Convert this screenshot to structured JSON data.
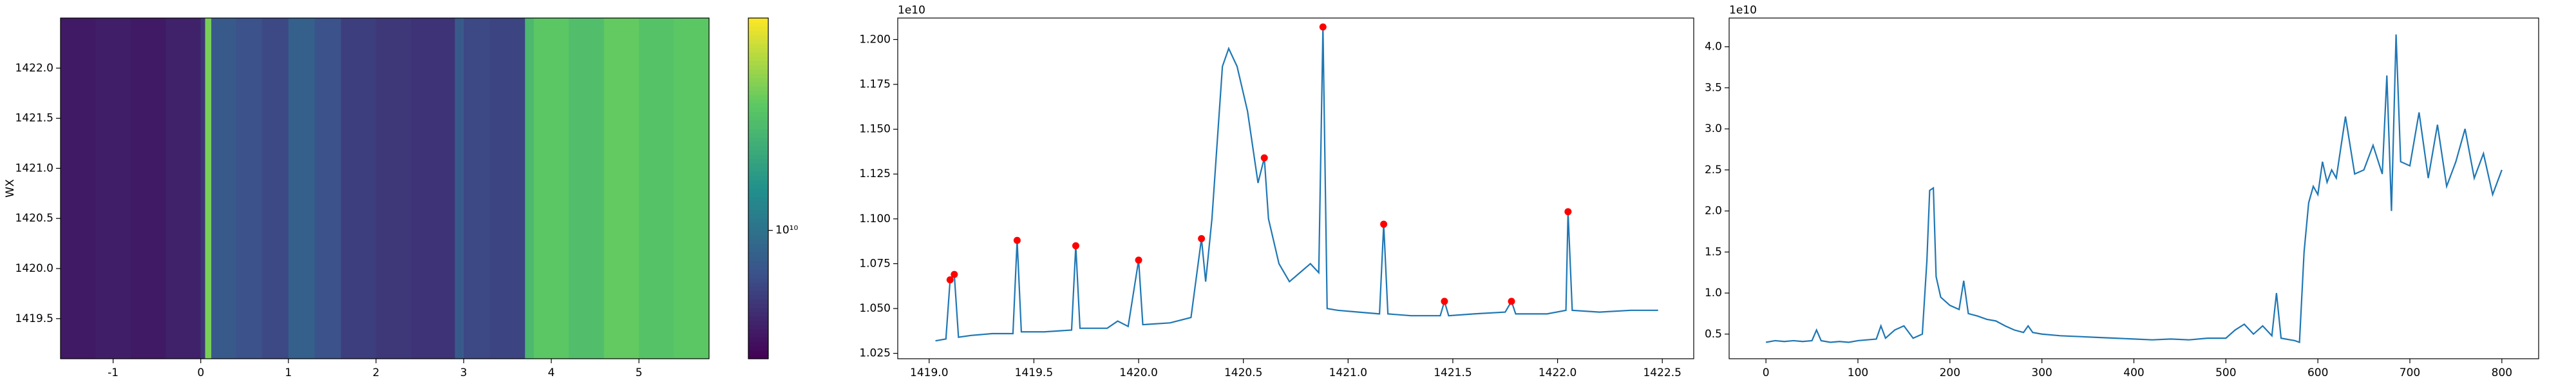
{
  "chart_data": [
    {
      "type": "heatmap",
      "ylabel": "WX",
      "x_edges": [
        -1.6,
        -1.2,
        -0.8,
        -0.4,
        0,
        0.05,
        0.12,
        0.4,
        0.7,
        1.0,
        1.3,
        1.6,
        2.0,
        2.4,
        2.9,
        3.0,
        3.3,
        3.7,
        3.8,
        4.2,
        4.6,
        5.0,
        5.4,
        5.8
      ],
      "values": [
        5000000000.0,
        5200000000.0,
        5000000000.0,
        5300000000.0,
        6000000000.0,
        26000000000.0,
        8000000000.0,
        7500000000.0,
        7000000000.0,
        8500000000.0,
        7500000000.0,
        6500000000.0,
        6200000000.0,
        6000000000.0,
        8000000000.0,
        7000000000.0,
        6800000000.0,
        20000000000.0,
        23000000000.0,
        21000000000.0,
        24000000000.0,
        22000000000.0,
        23000000000.0
      ],
      "xlim": [
        -1.6,
        5.8
      ],
      "ylim": [
        1419.1,
        1422.5
      ],
      "xticks": [
        -1,
        0,
        1,
        2,
        3,
        4,
        5
      ],
      "yticks": [
        1419.5,
        {
          "value": 1420,
          "label": "1420.0"
        },
        1420.5,
        {
          "value": 1421,
          "label": "1421.0"
        },
        1421.5,
        {
          "value": 1422,
          "label": "1422.0"
        }
      ],
      "colormap": "viridis",
      "color_scale": "log",
      "clim": [
        4200000000.0,
        42000000000.0
      ],
      "cticks": [
        {
          "value": 10000000000.0,
          "label": "10¹⁰"
        }
      ]
    },
    {
      "type": "line",
      "y_offset_label": "1e10",
      "color": "#1f77b4",
      "x": [
        1419.03,
        1419.08,
        1419.1,
        1419.12,
        1419.14,
        1419.2,
        1419.3,
        1419.4,
        1419.42,
        1419.44,
        1419.55,
        1419.68,
        1419.7,
        1419.72,
        1419.85,
        1419.9,
        1419.95,
        1420.0,
        1420.02,
        1420.15,
        1420.25,
        1420.3,
        1420.32,
        1420.35,
        1420.4,
        1420.43,
        1420.47,
        1420.52,
        1420.57,
        1420.6,
        1420.62,
        1420.67,
        1420.72,
        1420.77,
        1420.82,
        1420.86,
        1420.88,
        1420.9,
        1420.95,
        1421.05,
        1421.15,
        1421.17,
        1421.19,
        1421.3,
        1421.44,
        1421.46,
        1421.48,
        1421.6,
        1421.75,
        1421.78,
        1421.8,
        1421.95,
        1422.04,
        1422.05,
        1422.07,
        1422.2,
        1422.35,
        1422.48
      ],
      "values": [
        1.032,
        1.033,
        1.066,
        1.069,
        1.034,
        1.035,
        1.036,
        1.036,
        1.088,
        1.037,
        1.037,
        1.038,
        1.085,
        1.039,
        1.039,
        1.043,
        1.04,
        1.077,
        1.041,
        1.042,
        1.045,
        1.089,
        1.065,
        1.1,
        1.185,
        1.195,
        1.185,
        1.16,
        1.12,
        1.134,
        1.1,
        1.075,
        1.065,
        1.07,
        1.075,
        1.07,
        1.207,
        1.05,
        1.049,
        1.048,
        1.047,
        1.097,
        1.047,
        1.046,
        1.046,
        1.054,
        1.046,
        1.047,
        1.048,
        1.054,
        1.047,
        1.047,
        1.049,
        1.104,
        1.049,
        1.048,
        1.049,
        1.049
      ],
      "peaks": {
        "color": "#ff0000",
        "x": [
          1419.1,
          1419.12,
          1419.42,
          1419.7,
          1420.0,
          1420.3,
          1420.6,
          1420.88,
          1421.17,
          1421.46,
          1421.78,
          1422.05
        ],
        "values": [
          1.066,
          1.069,
          1.088,
          1.085,
          1.077,
          1.089,
          1.134,
          1.207,
          1.097,
          1.054,
          1.054,
          1.104
        ]
      },
      "xlim": [
        1418.85,
        1422.65
      ],
      "ylim": [
        1.022,
        1.212
      ],
      "xticks": [
        {
          "value": 1419,
          "label": "1419.0"
        },
        1419.5,
        {
          "value": 1420,
          "label": "1420.0"
        },
        1420.5,
        {
          "value": 1421,
          "label": "1421.0"
        },
        1421.5,
        {
          "value": 1422,
          "label": "1422.0"
        },
        1422.5
      ],
      "yticks": [
        1.025,
        {
          "value": 1.05,
          "label": "1.050"
        },
        1.075,
        {
          "value": 1.1,
          "label": "1.100"
        },
        1.125,
        {
          "value": 1.15,
          "label": "1.150"
        },
        1.175,
        {
          "value": 1.2,
          "label": "1.200"
        }
      ]
    },
    {
      "type": "line",
      "y_offset_label": "1e10",
      "color": "#1f77b4",
      "x": [
        0,
        10,
        20,
        30,
        40,
        50,
        55,
        60,
        70,
        80,
        90,
        100,
        110,
        120,
        125,
        130,
        140,
        150,
        160,
        170,
        175,
        178,
        182,
        185,
        190,
        200,
        210,
        215,
        220,
        230,
        240,
        250,
        260,
        270,
        280,
        285,
        290,
        300,
        320,
        340,
        360,
        380,
        400,
        420,
        440,
        460,
        480,
        500,
        510,
        520,
        530,
        540,
        550,
        555,
        560,
        570,
        575,
        580,
        585,
        590,
        595,
        600,
        605,
        610,
        615,
        620,
        630,
        640,
        650,
        660,
        670,
        675,
        680,
        685,
        690,
        700,
        710,
        720,
        730,
        740,
        750,
        760,
        770,
        780,
        790,
        800
      ],
      "values": [
        0.4,
        0.42,
        0.41,
        0.42,
        0.41,
        0.42,
        0.55,
        0.42,
        0.4,
        0.41,
        0.4,
        0.42,
        0.43,
        0.44,
        0.6,
        0.45,
        0.55,
        0.6,
        0.45,
        0.5,
        1.4,
        2.25,
        2.28,
        1.2,
        0.95,
        0.85,
        0.8,
        1.15,
        0.75,
        0.72,
        0.68,
        0.66,
        0.6,
        0.55,
        0.52,
        0.6,
        0.52,
        0.5,
        0.48,
        0.47,
        0.46,
        0.45,
        0.44,
        0.43,
        0.44,
        0.43,
        0.45,
        0.45,
        0.55,
        0.62,
        0.5,
        0.6,
        0.48,
        1.0,
        0.45,
        0.43,
        0.42,
        0.4,
        1.5,
        2.1,
        2.3,
        2.2,
        2.6,
        2.35,
        2.5,
        2.4,
        3.15,
        2.45,
        2.5,
        2.8,
        2.45,
        3.65,
        2.0,
        4.15,
        2.6,
        2.55,
        3.2,
        2.4,
        3.05,
        2.3,
        2.6,
        3.0,
        2.4,
        2.7,
        2.2,
        2.5
      ],
      "xlim": [
        -40,
        840
      ],
      "ylim": [
        0.2,
        4.35
      ],
      "xticks": [
        0,
        100,
        200,
        300,
        400,
        500,
        600,
        700,
        800
      ],
      "yticks": [
        0.5,
        {
          "value": 1,
          "label": "1.0"
        },
        1.5,
        {
          "value": 2,
          "label": "2.0"
        },
        2.5,
        {
          "value": 3,
          "label": "3.0"
        },
        3.5,
        {
          "value": 4,
          "label": "4.0"
        }
      ]
    }
  ]
}
